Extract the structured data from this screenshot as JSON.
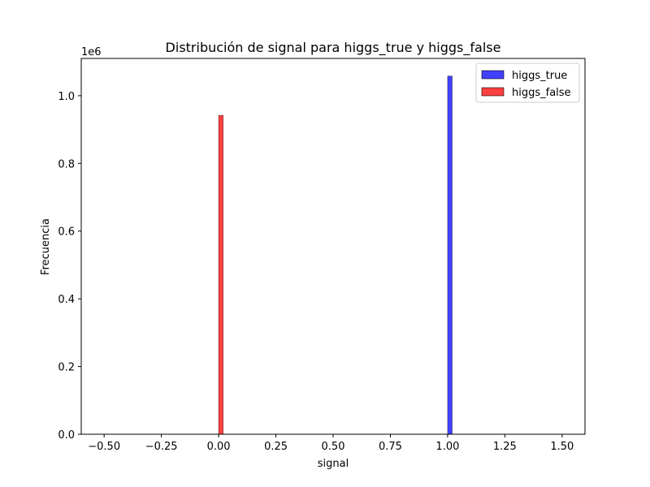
{
  "chart_data": {
    "type": "bar",
    "title": "Distribución de signal para higgs_true y higgs_false",
    "xlabel": "signal",
    "ylabel": "Frecuencia",
    "y_offset_label": "1e6",
    "xlim": [
      -0.6,
      1.6
    ],
    "ylim": [
      0,
      1110000
    ],
    "xticks": [
      -0.5,
      -0.25,
      0.0,
      0.25,
      0.5,
      0.75,
      1.0,
      1.25,
      1.5
    ],
    "xtick_labels": [
      "−0.50",
      "−0.25",
      "0.00",
      "0.25",
      "0.50",
      "0.75",
      "1.00",
      "1.25",
      "1.50"
    ],
    "yticks": [
      0,
      200000,
      400000,
      600000,
      800000,
      1000000
    ],
    "ytick_labels": [
      "0.0",
      "0.2",
      "0.4",
      "0.6",
      "0.8",
      "1.0"
    ],
    "grid": false,
    "legend_position": "top-right",
    "series": [
      {
        "name": "higgs_true",
        "color": "#0000ff",
        "bins": [
          {
            "x0": 1.0,
            "x1": 1.02,
            "value": 1058000
          }
        ]
      },
      {
        "name": "higgs_false",
        "color": "#ff0000",
        "bins": [
          {
            "x0": 0.0,
            "x1": 0.02,
            "value": 942000
          }
        ]
      }
    ]
  }
}
